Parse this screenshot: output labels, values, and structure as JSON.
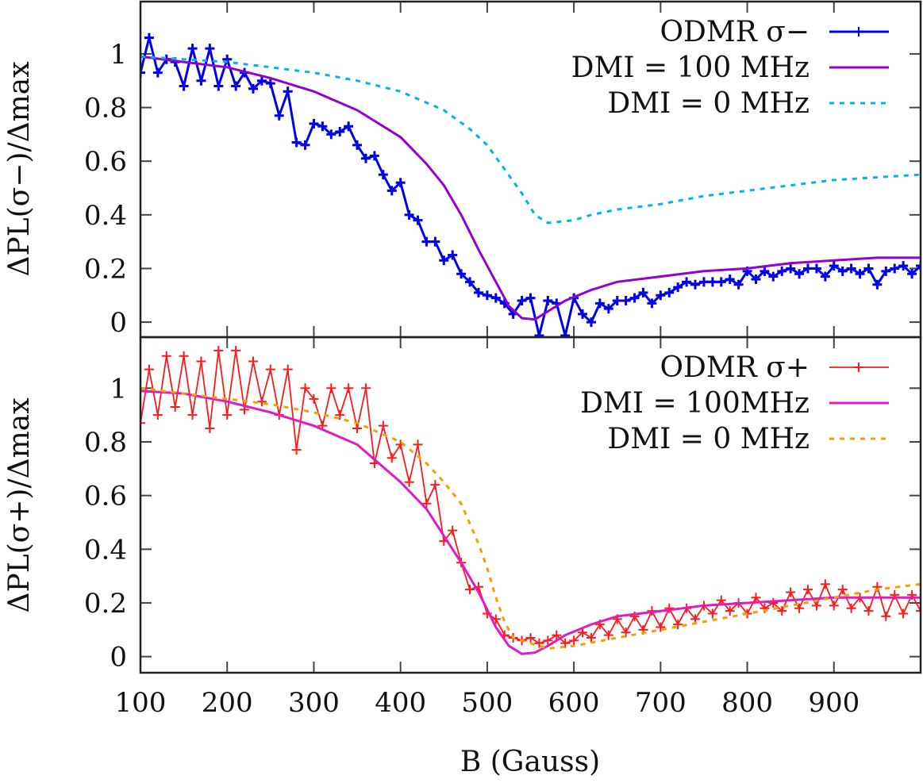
{
  "chart_data": [
    {
      "type": "line",
      "panel": "top",
      "ylabel": "ΔPL(σ−)/Δmax",
      "xlim": [
        100,
        1000
      ],
      "ylim": [
        -0.056,
        1.195
      ],
      "yticks": [
        "0",
        "0.2",
        "0.4",
        "0.6",
        "0.8",
        "1"
      ],
      "grid": false,
      "legend_position": "top-right",
      "series": [
        {
          "name": "ODMR σ−",
          "color": "#0000ee",
          "style": "solid-with-plus-markers",
          "x": [
            100,
            110,
            120,
            130,
            140,
            150,
            160,
            170,
            180,
            190,
            200,
            210,
            220,
            230,
            240,
            250,
            260,
            270,
            280,
            290,
            300,
            310,
            320,
            330,
            340,
            350,
            360,
            370,
            380,
            390,
            400,
            410,
            420,
            430,
            440,
            450,
            460,
            470,
            480,
            490,
            500,
            510,
            520,
            530,
            540,
            550,
            560,
            570,
            580,
            590,
            600,
            610,
            620,
            630,
            640,
            650,
            660,
            670,
            680,
            690,
            700,
            710,
            720,
            730,
            740,
            750,
            760,
            770,
            780,
            790,
            800,
            810,
            820,
            830,
            840,
            850,
            860,
            870,
            880,
            890,
            900,
            910,
            920,
            930,
            940,
            950,
            960,
            970,
            980,
            990,
            1000
          ],
          "y": [
            0.93,
            1.06,
            0.93,
            0.98,
            0.97,
            0.88,
            1.02,
            0.9,
            1.02,
            0.88,
            0.98,
            0.88,
            0.93,
            0.87,
            0.9,
            0.89,
            0.77,
            0.86,
            0.67,
            0.66,
            0.74,
            0.73,
            0.7,
            0.71,
            0.73,
            0.66,
            0.61,
            0.62,
            0.55,
            0.49,
            0.52,
            0.4,
            0.38,
            0.3,
            0.3,
            0.23,
            0.25,
            0.18,
            0.15,
            0.11,
            0.1,
            0.09,
            0.07,
            0.03,
            0.08,
            0.09,
            -0.05,
            0.08,
            0.07,
            -0.05,
            0.09,
            0.03,
            0.0,
            0.07,
            0.05,
            0.08,
            0.08,
            0.09,
            0.11,
            0.07,
            0.1,
            0.11,
            0.13,
            0.15,
            0.14,
            0.15,
            0.15,
            0.15,
            0.16,
            0.14,
            0.19,
            0.16,
            0.19,
            0.17,
            0.19,
            0.2,
            0.18,
            0.2,
            0.2,
            0.17,
            0.21,
            0.19,
            0.2,
            0.18,
            0.2,
            0.14,
            0.19,
            0.2,
            0.21,
            0.18,
            0.21
          ]
        },
        {
          "name": "DMI = 100 MHz",
          "color": "#9400d3",
          "style": "solid",
          "x": [
            100,
            150,
            200,
            250,
            300,
            350,
            400,
            430,
            450,
            470,
            490,
            510,
            525,
            540,
            555,
            570,
            590,
            620,
            650,
            700,
            750,
            800,
            850,
            900,
            950,
            1000
          ],
          "y": [
            0.99,
            0.97,
            0.95,
            0.91,
            0.86,
            0.79,
            0.69,
            0.59,
            0.51,
            0.4,
            0.27,
            0.15,
            0.06,
            0.015,
            0.01,
            0.04,
            0.08,
            0.12,
            0.15,
            0.17,
            0.19,
            0.2,
            0.22,
            0.23,
            0.24,
            0.24
          ]
        },
        {
          "name": "DMI = 0 MHz",
          "color": "#00b4e6",
          "style": "dashed",
          "x": [
            100,
            150,
            200,
            250,
            300,
            350,
            400,
            450,
            480,
            500,
            520,
            540,
            555,
            570,
            600,
            620,
            650,
            700,
            750,
            800,
            850,
            900,
            950,
            1000
          ],
          "y": [
            0.99,
            0.98,
            0.97,
            0.95,
            0.93,
            0.9,
            0.86,
            0.79,
            0.72,
            0.66,
            0.57,
            0.48,
            0.4,
            0.37,
            0.38,
            0.4,
            0.42,
            0.44,
            0.47,
            0.49,
            0.51,
            0.53,
            0.54,
            0.55
          ]
        }
      ]
    },
    {
      "type": "line",
      "panel": "bottom",
      "ylabel": "ΔPL(σ+)/Δmax",
      "xlabel": "B (Gauss)",
      "xlim": [
        100,
        1000
      ],
      "ylim": [
        -0.06,
        1.19
      ],
      "xticks": [
        "100",
        "200",
        "300",
        "400",
        "500",
        "600",
        "700",
        "800",
        "900"
      ],
      "yticks": [
        "0",
        "0.2",
        "0.4",
        "0.6",
        "0.8",
        "1"
      ],
      "grid": false,
      "legend_position": "top-right",
      "series": [
        {
          "name": "ODMR σ+",
          "color": "#ff1a1a",
          "style": "solid-with-plus-markers",
          "x": [
            100,
            110,
            120,
            130,
            140,
            150,
            160,
            170,
            180,
            190,
            200,
            210,
            220,
            230,
            240,
            250,
            260,
            270,
            280,
            290,
            300,
            310,
            320,
            330,
            340,
            350,
            360,
            370,
            380,
            390,
            400,
            410,
            420,
            430,
            440,
            450,
            460,
            470,
            480,
            490,
            500,
            510,
            520,
            530,
            540,
            550,
            560,
            570,
            580,
            590,
            600,
            610,
            620,
            630,
            640,
            650,
            660,
            670,
            680,
            690,
            700,
            710,
            720,
            730,
            740,
            750,
            760,
            770,
            780,
            790,
            800,
            810,
            820,
            830,
            840,
            850,
            860,
            870,
            880,
            890,
            900,
            910,
            920,
            930,
            940,
            950,
            960,
            970,
            980,
            990,
            1000
          ],
          "y": [
            0.87,
            1.07,
            0.9,
            1.12,
            0.93,
            1.12,
            0.9,
            1.1,
            0.85,
            1.14,
            0.9,
            1.14,
            0.92,
            1.1,
            0.95,
            1.07,
            0.9,
            1.07,
            0.77,
            1.0,
            0.96,
            0.86,
            1.0,
            0.9,
            1.0,
            0.85,
            1.0,
            0.72,
            0.86,
            0.74,
            0.79,
            0.65,
            0.79,
            0.57,
            0.64,
            0.43,
            0.47,
            0.35,
            0.25,
            0.26,
            0.16,
            0.14,
            0.08,
            0.07,
            0.06,
            0.07,
            0.05,
            0.06,
            0.08,
            0.05,
            0.06,
            0.09,
            0.07,
            0.12,
            0.08,
            0.14,
            0.09,
            0.15,
            0.1,
            0.17,
            0.11,
            0.18,
            0.12,
            0.18,
            0.14,
            0.19,
            0.16,
            0.21,
            0.17,
            0.2,
            0.16,
            0.22,
            0.18,
            0.2,
            0.17,
            0.24,
            0.18,
            0.25,
            0.19,
            0.27,
            0.19,
            0.25,
            0.18,
            0.22,
            0.17,
            0.26,
            0.15,
            0.23,
            0.16,
            0.23,
            0.17
          ]
        },
        {
          "name": "DMI = 100MHz",
          "color": "#e01cc0",
          "style": "solid",
          "x": [
            100,
            150,
            200,
            250,
            300,
            350,
            400,
            430,
            450,
            470,
            490,
            510,
            525,
            540,
            555,
            570,
            590,
            620,
            650,
            700,
            750,
            800,
            850,
            900,
            950,
            1000
          ],
          "y": [
            0.99,
            0.98,
            0.95,
            0.91,
            0.86,
            0.79,
            0.65,
            0.55,
            0.45,
            0.35,
            0.24,
            0.11,
            0.04,
            0.01,
            0.015,
            0.04,
            0.08,
            0.12,
            0.15,
            0.17,
            0.19,
            0.2,
            0.21,
            0.22,
            0.22,
            0.22
          ]
        },
        {
          "name": "DMI = 0 MHz",
          "color": "#f5a000",
          "style": "dashed",
          "x": [
            100,
            150,
            200,
            250,
            300,
            350,
            400,
            430,
            450,
            470,
            490,
            500,
            510,
            520,
            530,
            550,
            570,
            600,
            650,
            700,
            750,
            800,
            850,
            900,
            950,
            1000
          ],
          "y": [
            1.0,
            0.98,
            0.96,
            0.94,
            0.91,
            0.87,
            0.8,
            0.72,
            0.65,
            0.57,
            0.42,
            0.33,
            0.22,
            0.13,
            0.07,
            0.05,
            0.03,
            0.04,
            0.07,
            0.1,
            0.13,
            0.16,
            0.19,
            0.22,
            0.25,
            0.27
          ]
        }
      ]
    }
  ]
}
